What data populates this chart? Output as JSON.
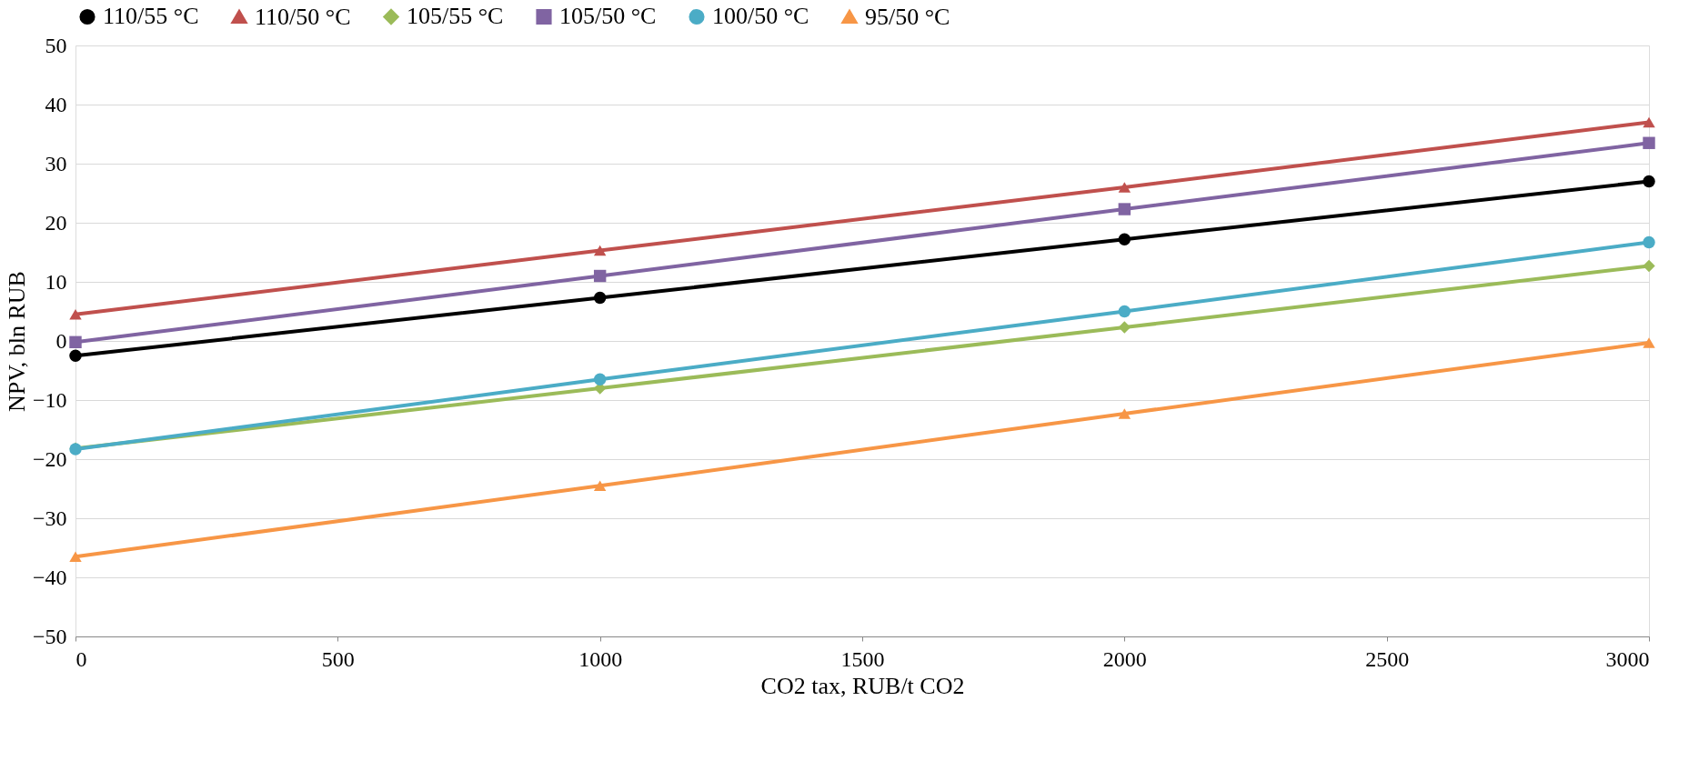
{
  "chart_data": {
    "type": "line",
    "xlabel": "CO2 tax, RUB/t CO2",
    "ylabel": "NPV, bln RUB",
    "x": [
      0,
      1000,
      2000,
      3000
    ],
    "series": [
      {
        "name": "110/55 °C",
        "color": "#000000",
        "marker": "circle",
        "values": [
          -2.5,
          7.3,
          17.2,
          27
        ]
      },
      {
        "name": "110/50 °C",
        "color": "#c0504d",
        "marker": "triangle",
        "values": [
          4.5,
          15.3,
          26,
          37
        ]
      },
      {
        "name": "105/55 °C",
        "color": "#9bbb59",
        "marker": "diamond",
        "values": [
          -18.2,
          -8,
          2.3,
          12.7
        ]
      },
      {
        "name": "105/50 °C",
        "color": "#8064a2",
        "marker": "square",
        "values": [
          -0.2,
          11,
          22.3,
          33.5
        ]
      },
      {
        "name": "100/50 °C",
        "color": "#4bacc6",
        "marker": "circle",
        "values": [
          -18.3,
          -6.5,
          5,
          16.7
        ]
      },
      {
        "name": "95/50 °C",
        "color": "#f79646",
        "marker": "triangle",
        "values": [
          -36.5,
          -24.5,
          -12.3,
          -0.3
        ]
      }
    ],
    "xlim": [
      0,
      3000
    ],
    "xticks": [
      0,
      500,
      1000,
      1500,
      2000,
      2500,
      3000
    ],
    "ylim": [
      -50,
      50
    ],
    "yticks": [
      -50,
      -40,
      -30,
      -20,
      -10,
      0,
      10,
      20,
      30,
      40,
      50
    ],
    "grid": "y",
    "legend": "top",
    "line_style": "solid"
  }
}
